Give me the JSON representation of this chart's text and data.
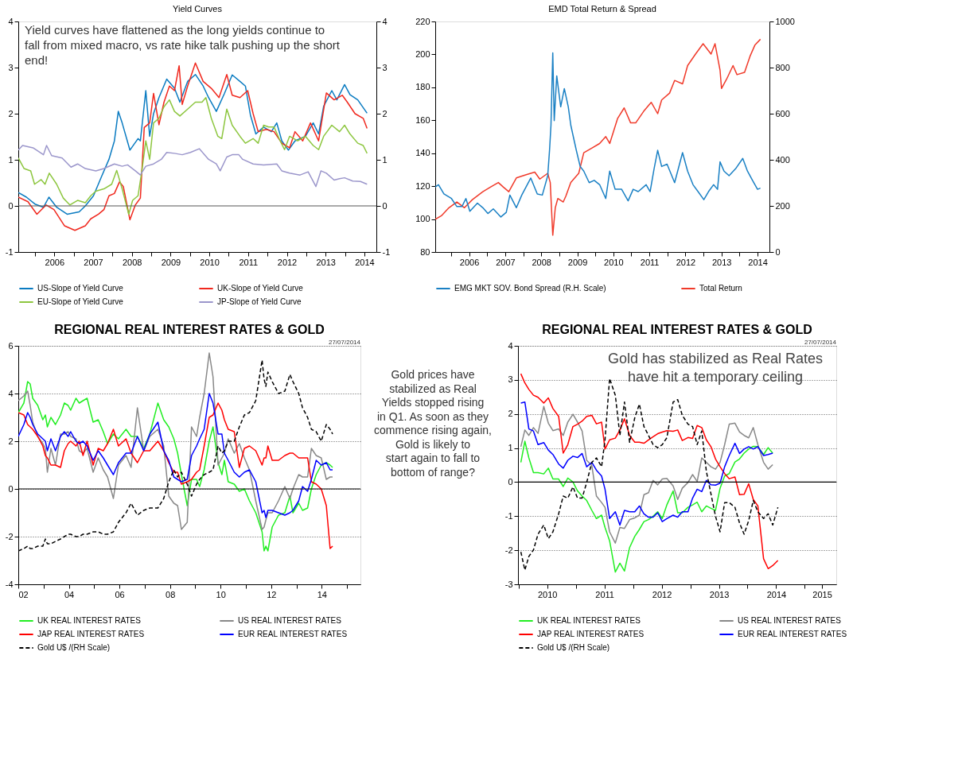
{
  "chart_data": [
    {
      "type": "line",
      "title": "Yield Curves",
      "annotations": [
        "Yield curves have flattened as the long yields continue to fall from mixed macro, vs rate hike talk pushing up the short end!"
      ],
      "xlim": [
        2005.57,
        2014.81
      ],
      "xticks": [
        {
          "value": 2006,
          "label": null
        },
        {
          "value": 2006.5,
          "label": "2006"
        },
        {
          "value": 2007,
          "label": null
        },
        {
          "value": 2007.5,
          "label": "2007"
        },
        {
          "value": 2008,
          "label": null
        },
        {
          "value": 2008.5,
          "label": "2008"
        },
        {
          "value": 2009,
          "label": null
        },
        {
          "value": 2009.5,
          "label": "2009"
        },
        {
          "value": 2010,
          "label": null
        },
        {
          "value": 2010.5,
          "label": "2010"
        },
        {
          "value": 2011,
          "label": null
        },
        {
          "value": 2011.5,
          "label": "2011"
        },
        {
          "value": 2012,
          "label": null
        },
        {
          "value": 2012.5,
          "label": "2012"
        },
        {
          "value": 2013,
          "label": null
        },
        {
          "value": 2013.5,
          "label": "2013"
        },
        {
          "value": 2014,
          "label": null
        },
        {
          "value": 2014.5,
          "label": "2014"
        }
      ],
      "ylim": [
        -1,
        4
      ],
      "yticks": [
        -1,
        0,
        1,
        2,
        3,
        4
      ],
      "y2lim": [
        -1,
        4
      ],
      "y2ticks": [
        -1,
        0,
        1,
        2,
        3,
        4
      ],
      "legend": "bottom",
      "ref_lines": [
        {
          "axis": "y",
          "value": 0,
          "color": "#555555"
        }
      ],
      "series": [
        {
          "name": "US-Slope of Yield Curve",
          "color": "#0a7bc1",
          "x": [
            2005.57,
            2005.78,
            2006.0,
            2006.22,
            2006.36,
            2006.56,
            2006.83,
            2007.14,
            2007.3,
            2007.51,
            2007.71,
            2007.91,
            2008.05,
            2008.15,
            2008.25,
            2008.45,
            2008.66,
            2008.72,
            2008.86,
            2008.96,
            2009.06,
            2009.2,
            2009.4,
            2009.6,
            2009.74,
            2009.94,
            2010.14,
            2010.34,
            2010.48,
            2010.68,
            2010.89,
            2011.09,
            2011.29,
            2011.43,
            2011.56,
            2011.7,
            2011.9,
            2012.1,
            2012.24,
            2012.37,
            2012.54,
            2012.71,
            2012.98,
            2013.18,
            2013.32,
            2013.45,
            2013.66,
            2013.79,
            2013.99,
            2014.13,
            2014.33,
            2014.57
          ],
          "values": [
            0.29,
            0.19,
            0.04,
            -0.03,
            0.19,
            -0.03,
            -0.18,
            -0.13,
            0.0,
            0.22,
            0.62,
            1.01,
            1.41,
            2.05,
            1.8,
            1.21,
            1.46,
            1.41,
            2.5,
            1.51,
            2.0,
            2.35,
            2.75,
            2.55,
            2.25,
            2.7,
            2.85,
            2.6,
            2.35,
            2.05,
            2.44,
            2.84,
            2.7,
            2.6,
            1.97,
            1.56,
            1.71,
            1.61,
            1.8,
            1.41,
            1.21,
            1.41,
            1.51,
            1.8,
            1.56,
            2.16,
            2.5,
            2.3,
            2.63,
            2.41,
            2.3,
            2.01
          ]
        },
        {
          "name": "UK-Slope of Yield Curve",
          "color": "#f0281e",
          "x": [
            2005.57,
            2005.82,
            2006.05,
            2006.29,
            2006.49,
            2006.76,
            2007.03,
            2007.3,
            2007.44,
            2007.64,
            2007.78,
            2007.91,
            2008.05,
            2008.18,
            2008.28,
            2008.45,
            2008.59,
            2008.72,
            2008.82,
            2008.96,
            2009.06,
            2009.2,
            2009.33,
            2009.47,
            2009.6,
            2009.72,
            2009.8,
            2009.94,
            2010.14,
            2010.34,
            2010.55,
            2010.75,
            2010.95,
            2011.09,
            2011.29,
            2011.49,
            2011.63,
            2011.76,
            2011.97,
            2012.17,
            2012.37,
            2012.57,
            2012.71,
            2012.91,
            2013.11,
            2013.32,
            2013.52,
            2013.72,
            2013.93,
            2014.06,
            2014.26,
            2014.47,
            2014.57
          ],
          "values": [
            0.19,
            0.09,
            -0.18,
            0.02,
            -0.08,
            -0.43,
            -0.53,
            -0.43,
            -0.28,
            -0.18,
            -0.08,
            0.22,
            0.27,
            0.52,
            0.42,
            -0.3,
            0.02,
            0.17,
            1.7,
            1.8,
            2.44,
            1.76,
            2.25,
            2.6,
            2.5,
            3.04,
            2.2,
            2.6,
            3.1,
            2.7,
            2.55,
            2.35,
            2.85,
            2.4,
            2.35,
            2.5,
            2.0,
            1.61,
            1.66,
            1.61,
            1.36,
            1.26,
            1.61,
            1.41,
            1.8,
            1.41,
            2.45,
            2.3,
            2.4,
            2.25,
            2.0,
            1.9,
            1.68
          ]
        },
        {
          "name": "EU-Slope of Yield Curve",
          "color": "#8dc63f",
          "x": [
            2005.57,
            2005.72,
            2005.89,
            2005.99,
            2006.16,
            2006.26,
            2006.37,
            2006.56,
            2006.73,
            2006.9,
            2007.1,
            2007.3,
            2007.44,
            2007.57,
            2007.78,
            2007.98,
            2008.11,
            2008.25,
            2008.42,
            2008.52,
            2008.66,
            2008.76,
            2008.86,
            2008.96,
            2009.06,
            2009.2,
            2009.33,
            2009.47,
            2009.6,
            2009.74,
            2009.94,
            2010.14,
            2010.31,
            2010.41,
            2010.55,
            2010.72,
            2010.82,
            2010.95,
            2011.09,
            2011.29,
            2011.43,
            2011.63,
            2011.76,
            2011.9,
            2012.03,
            2012.17,
            2012.3,
            2012.44,
            2012.57,
            2012.78,
            2012.98,
            2013.18,
            2013.32,
            2013.45,
            2013.66,
            2013.86,
            2013.99,
            2014.13,
            2014.33,
            2014.47,
            2014.57
          ],
          "values": [
            1.04,
            0.81,
            0.76,
            0.47,
            0.57,
            0.47,
            0.71,
            0.47,
            0.17,
            0.02,
            0.12,
            0.07,
            0.22,
            0.32,
            0.37,
            0.47,
            0.77,
            0.37,
            -0.18,
            0.12,
            0.22,
            0.77,
            1.41,
            1.01,
            1.8,
            1.9,
            2.15,
            2.3,
            2.05,
            1.95,
            2.1,
            2.25,
            2.25,
            2.35,
            1.9,
            1.51,
            1.46,
            2.1,
            1.75,
            1.51,
            1.36,
            1.46,
            1.36,
            1.75,
            1.71,
            1.71,
            1.46,
            1.22,
            1.51,
            1.41,
            1.51,
            1.31,
            1.22,
            1.51,
            1.75,
            1.61,
            1.75,
            1.56,
            1.36,
            1.31,
            1.14
          ]
        },
        {
          "name": "JP-Slope of Yield Curve",
          "color": "#9b96cb",
          "x": [
            2005.57,
            2005.68,
            2005.95,
            2006.22,
            2006.3,
            2006.43,
            2006.7,
            2006.93,
            2007.1,
            2007.3,
            2007.57,
            2007.78,
            2008.05,
            2008.25,
            2008.39,
            2008.59,
            2008.72,
            2008.86,
            2009.06,
            2009.26,
            2009.4,
            2009.6,
            2009.8,
            2010.01,
            2010.24,
            2010.48,
            2010.68,
            2010.78,
            2010.95,
            2011.09,
            2011.26,
            2011.36,
            2011.63,
            2011.9,
            2012.24,
            2012.37,
            2012.57,
            2012.84,
            2013.05,
            2013.25,
            2013.38,
            2013.52,
            2013.72,
            2013.86,
            2013.99,
            2014.2,
            2014.4,
            2014.57
          ],
          "values": [
            1.21,
            1.31,
            1.26,
            1.11,
            1.31,
            1.09,
            1.04,
            0.84,
            0.91,
            0.81,
            0.76,
            0.81,
            0.91,
            0.86,
            0.89,
            0.76,
            0.67,
            0.86,
            0.91,
            1.01,
            1.16,
            1.14,
            1.11,
            1.16,
            1.24,
            1.01,
            0.91,
            0.76,
            1.06,
            1.11,
            1.11,
            1.01,
            0.91,
            0.89,
            0.91,
            0.76,
            0.71,
            0.67,
            0.74,
            0.42,
            0.76,
            0.71,
            0.56,
            0.59,
            0.61,
            0.54,
            0.53,
            0.47
          ]
        }
      ]
    },
    {
      "type": "line",
      "title": "EMD Total Return & Spread",
      "xlim": [
        2005.56,
        2014.83
      ],
      "xticks": [
        {
          "value": 2006,
          "label": null
        },
        {
          "value": 2006.5,
          "label": "2006"
        },
        {
          "value": 2007,
          "label": null
        },
        {
          "value": 2007.5,
          "label": "2007"
        },
        {
          "value": 2008,
          "label": null
        },
        {
          "value": 2008.5,
          "label": "2008"
        },
        {
          "value": 2009,
          "label": null
        },
        {
          "value": 2009.5,
          "label": "2009"
        },
        {
          "value": 2010,
          "label": null
        },
        {
          "value": 2010.5,
          "label": "2010"
        },
        {
          "value": 2011,
          "label": null
        },
        {
          "value": 2011.5,
          "label": "2011"
        },
        {
          "value": 2012,
          "label": null
        },
        {
          "value": 2012.5,
          "label": "2012"
        },
        {
          "value": 2013,
          "label": null
        },
        {
          "value": 2013.5,
          "label": "2013"
        },
        {
          "value": 2014,
          "label": null
        },
        {
          "value": 2014.5,
          "label": "2014"
        }
      ],
      "ylim": [
        80,
        220
      ],
      "yticks": [
        80,
        100,
        120,
        140,
        160,
        180,
        200,
        220
      ],
      "y2lim": [
        0,
        1000
      ],
      "y2ticks": [
        0,
        200,
        400,
        600,
        800,
        1000
      ],
      "legend": "bottom",
      "series": [
        {
          "name": "EMG MKT SOV. Bond Spread (R.H. Scale)",
          "color": "#1a80c4",
          "axis": "y2",
          "x": [
            2005.56,
            2005.65,
            2005.8,
            2006.01,
            2006.16,
            2006.3,
            2006.41,
            2006.52,
            2006.73,
            2006.88,
            2007.02,
            2007.17,
            2007.38,
            2007.53,
            2007.63,
            2007.81,
            2007.96,
            2008.21,
            2008.39,
            2008.53,
            2008.68,
            2008.73,
            2008.77,
            2008.82,
            2008.86,
            2008.93,
            2009.04,
            2009.14,
            2009.25,
            2009.32,
            2009.47,
            2009.58,
            2009.68,
            2009.83,
            2009.97,
            2010.12,
            2010.29,
            2010.4,
            2010.55,
            2010.73,
            2010.91,
            2011.05,
            2011.19,
            2011.41,
            2011.52,
            2011.63,
            2011.73,
            2011.84,
            2011.99,
            2012.2,
            2012.42,
            2012.56,
            2012.71,
            2012.85,
            2013.01,
            2013.14,
            2013.28,
            2013.39,
            2013.46,
            2013.57,
            2013.71,
            2013.89,
            2014.09,
            2014.22,
            2014.36,
            2014.5,
            2014.58
          ],
          "values": [
            282,
            292,
            252,
            232,
            197,
            197,
            232,
            177,
            212,
            192,
            167,
            187,
            152,
            172,
            247,
            192,
            247,
            321,
            252,
            247,
            331,
            441,
            550,
            864,
            570,
            764,
            630,
            709,
            630,
            550,
            443,
            371,
            351,
            301,
            311,
            292,
            232,
            351,
            272,
            272,
            222,
            272,
            262,
            292,
            262,
            361,
            441,
            371,
            381,
            301,
            431,
            351,
            292,
            262,
            227,
            262,
            292,
            272,
            391,
            351,
            331,
            361,
            406,
            351,
            311,
            272,
            277
          ]
        },
        {
          "name": "Total Return",
          "color": "#f03a2a",
          "x": [
            2005.56,
            2005.73,
            2005.94,
            2006.16,
            2006.37,
            2006.59,
            2006.88,
            2007.09,
            2007.31,
            2007.45,
            2007.6,
            2007.81,
            2008.1,
            2008.32,
            2008.46,
            2008.68,
            2008.75,
            2008.82,
            2008.89,
            2008.96,
            2009.11,
            2009.18,
            2009.32,
            2009.54,
            2009.68,
            2009.9,
            2010.12,
            2010.29,
            2010.4,
            2010.62,
            2010.8,
            2010.98,
            2011.12,
            2011.34,
            2011.55,
            2011.73,
            2011.84,
            2012.06,
            2012.2,
            2012.42,
            2012.56,
            2012.78,
            2012.99,
            2013.21,
            2013.32,
            2013.46,
            2013.5,
            2013.64,
            2013.82,
            2013.93,
            2014.14,
            2014.29,
            2014.43,
            2014.58
          ],
          "values": [
            99.9,
            102.0,
            106.9,
            110.4,
            106.9,
            111.8,
            116.6,
            119.4,
            122.2,
            119.4,
            116.6,
            125.0,
            127.1,
            128.5,
            124.3,
            127.8,
            122.2,
            90.2,
            106.9,
            112.5,
            110.4,
            113.8,
            122.2,
            127.8,
            140.3,
            143.1,
            145.9,
            150.1,
            145.9,
            161.2,
            167.5,
            158.4,
            158.4,
            165.4,
            170.9,
            164.0,
            172.3,
            176.5,
            184.2,
            182.1,
            193.2,
            200.2,
            206.5,
            200.2,
            206.5,
            190.4,
            179.3,
            184.9,
            193.2,
            187.7,
            189.1,
            198.8,
            205.8,
            209.2
          ]
        }
      ]
    },
    {
      "type": "line",
      "title": "REGIONAL REAL INTEREST RATES & GOLD",
      "annotations": [
        "27/07/2014"
      ],
      "xlim": [
        2002,
        2015.53
      ],
      "xticks": [
        {
          "value": 2002,
          "label": "02"
        },
        {
          "value": 2003,
          "label": null
        },
        {
          "value": 2004,
          "label": "04"
        },
        {
          "value": 2005,
          "label": null
        },
        {
          "value": 2006,
          "label": "06"
        },
        {
          "value": 2007,
          "label": null
        },
        {
          "value": 2008,
          "label": "08"
        },
        {
          "value": 2009,
          "label": null
        },
        {
          "value": 2010,
          "label": "10"
        },
        {
          "value": 2011,
          "label": null
        },
        {
          "value": 2012,
          "label": "12"
        },
        {
          "value": 2013,
          "label": null
        },
        {
          "value": 2014,
          "label": "14"
        },
        {
          "value": 2015,
          "label": null
        }
      ],
      "ylim": [
        -4,
        6
      ],
      "yticks": [
        -4,
        -2,
        0,
        2,
        4,
        6
      ],
      "grid": "y",
      "legend": "bottom",
      "ref_lines": [
        {
          "axis": "y",
          "value": 0,
          "color": "#000000"
        }
      ],
      "x": [
        2002.0,
        2002.22,
        2002.37,
        2002.47,
        2002.57,
        2002.77,
        2002.97,
        2003.07,
        2003.15,
        2003.29,
        2003.47,
        2003.67,
        2003.82,
        2003.97,
        2004.07,
        2004.28,
        2004.41,
        2004.56,
        2004.72,
        2004.96,
        2005.16,
        2005.36,
        2005.53,
        2005.76,
        2005.96,
        2006.26,
        2006.46,
        2006.71,
        2006.96,
        2007.2,
        2007.52,
        2007.75,
        2007.95,
        2008.15,
        2008.3,
        2008.45,
        2008.68,
        2008.85,
        2009.05,
        2009.17,
        2009.35,
        2009.55,
        2009.7,
        2009.9,
        2010.05,
        2010.15,
        2010.3,
        2010.54,
        2010.74,
        2010.94,
        2011.14,
        2011.39,
        2011.64,
        2011.72,
        2011.79,
        2011.87,
        2012.04,
        2012.29,
        2012.54,
        2012.74,
        2012.86,
        2013.09,
        2013.24,
        2013.44,
        2013.59,
        2013.78,
        2013.98,
        2014.18,
        2014.33,
        2014.43
      ],
      "series": [
        {
          "name": "UK REAL INTEREST RATES",
          "color": "#22ee22",
          "values": [
            3.2,
            3.6,
            4.5,
            4.4,
            3.8,
            3.5,
            2.9,
            3.1,
            2.6,
            3.0,
            2.7,
            3.1,
            3.6,
            3.5,
            3.3,
            3.8,
            3.6,
            3.7,
            3.8,
            2.8,
            2.9,
            2.4,
            1.9,
            2.3,
            2.1,
            2.5,
            2.2,
            2.2,
            1.7,
            2.3,
            3.6,
            2.9,
            2.6,
            2.1,
            1.5,
            0.6,
            -0.7,
            0.4,
            0.4,
            0.1,
            0.8,
            2.0,
            2.6,
            1.1,
            0.6,
            1.2,
            0.3,
            0.2,
            -0.1,
            0.0,
            -0.5,
            -1.0,
            -1.8,
            -2.6,
            -2.4,
            -2.6,
            -1.6,
            -1.1,
            -1.0,
            -0.3,
            -1.0,
            -0.6,
            -0.9,
            -0.8,
            0.0,
            0.6,
            1.0,
            1.1,
            1.0,
            0.9
          ]
        },
        {
          "name": "US REAL INTEREST RATES",
          "color": "#888888",
          "values": [
            3.7,
            3.9,
            4.1,
            3.5,
            2.8,
            2.2,
            1.9,
            1.7,
            0.7,
            1.7,
            1.0,
            2.3,
            2.3,
            2.4,
            2.2,
            2.1,
            1.6,
            1.5,
            1.7,
            0.7,
            1.3,
            0.8,
            0.5,
            -0.4,
            1.0,
            1.4,
            0.9,
            3.4,
            1.6,
            2.2,
            2.5,
            1.8,
            -0.3,
            -0.6,
            -0.7,
            -1.7,
            -1.4,
            2.6,
            2.2,
            3.0,
            4.0,
            5.7,
            4.7,
            1.0,
            1.3,
            1.5,
            2.1,
            1.5,
            1.9,
            1.3,
            0.8,
            -0.5,
            -1.7,
            -1.6,
            -1.3,
            -1.0,
            -1.0,
            -0.5,
            0.1,
            -0.4,
            0.0,
            0.6,
            0.5,
            0.5,
            1.7,
            1.4,
            1.3,
            0.4,
            0.5,
            0.5
          ]
        },
        {
          "name": "JAP REAL INTEREST RATES",
          "color": "#ff0000",
          "values": [
            3.2,
            3.1,
            2.7,
            2.6,
            2.5,
            2.2,
            1.8,
            1.4,
            1.3,
            1.0,
            1.0,
            0.9,
            1.6,
            1.9,
            2.0,
            1.8,
            2.0,
            1.4,
            2.0,
            1.0,
            1.7,
            1.6,
            1.9,
            2.5,
            1.8,
            2.1,
            1.5,
            1.1,
            1.6,
            1.6,
            2.0,
            1.6,
            1.1,
            0.7,
            0.7,
            0.2,
            0.3,
            0.4,
            0.7,
            0.8,
            1.8,
            3.0,
            3.1,
            3.6,
            3.3,
            2.9,
            2.5,
            2.4,
            0.9,
            1.7,
            1.8,
            1.6,
            1.0,
            1.3,
            1.3,
            1.8,
            1.2,
            1.2,
            1.4,
            1.5,
            1.5,
            1.3,
            1.3,
            1.3,
            0.3,
            0.2,
            0.0,
            -0.7,
            -2.5,
            -2.4
          ]
        },
        {
          "name": "EUR REAL INTEREST RATES",
          "color": "#0000ff",
          "values": [
            2.2,
            2.7,
            3.2,
            3.0,
            2.7,
            2.3,
            2.1,
            2.0,
            1.6,
            2.1,
            1.6,
            2.2,
            2.4,
            2.2,
            2.4,
            2.0,
            1.9,
            2.0,
            1.8,
            1.2,
            1.6,
            1.3,
            1.0,
            0.6,
            1.1,
            1.5,
            1.5,
            2.2,
            1.6,
            2.3,
            2.8,
            1.6,
            1.2,
            0.5,
            0.4,
            0.3,
            0.4,
            1.4,
            1.8,
            2.1,
            2.5,
            4.0,
            3.6,
            2.3,
            2.3,
            1.5,
            1.2,
            0.7,
            0.5,
            0.7,
            0.8,
            0.3,
            -1.0,
            -0.9,
            -1.2,
            -0.9,
            -0.9,
            -1.0,
            -1.1,
            -1.0,
            -0.9,
            -0.5,
            0.1,
            -0.1,
            0.4,
            1.2,
            1.0,
            1.1,
            0.8,
            0.8
          ]
        },
        {
          "name": "Gold  U$ /(RH Scale)",
          "color": "#000000",
          "line_style": "dashed",
          "values": [
            -2.6,
            -2.5,
            -2.4,
            -2.5,
            -2.5,
            -2.4,
            -2.4,
            -2.1,
            -2.3,
            -2.3,
            -2.2,
            -2.1,
            -2.0,
            -1.9,
            -1.9,
            -2.0,
            -2.0,
            -1.9,
            -1.9,
            -1.8,
            -1.8,
            -1.9,
            -1.9,
            -1.8,
            -1.4,
            -1.0,
            -0.6,
            -1.1,
            -0.9,
            -0.8,
            -0.8,
            -0.4,
            0.3,
            0.8,
            0.5,
            0.7,
            0.2,
            -0.3,
            0.2,
            0.4,
            0.6,
            0.7,
            0.8,
            1.8,
            1.5,
            1.6,
            2.0,
            2.0,
            2.6,
            3.1,
            3.2,
            3.7,
            5.4,
            4.6,
            4.3,
            4.9,
            4.5,
            4.0,
            4.1,
            4.8,
            4.5,
            4.0,
            3.4,
            3.0,
            2.5,
            2.4,
            2.0,
            2.7,
            2.5,
            2.3
          ]
        }
      ]
    },
    {
      "type": "other",
      "annotations": [
        "Gold prices have stabilized as Real Yields stopped rising in Q1. As soon as they commence rising again, Gold is likely to start again to fall to bottom of range?"
      ]
    },
    {
      "type": "line",
      "title": "REGIONAL REAL INTEREST RATES & GOLD",
      "annotations": [
        "27/07/2014",
        "Gold has stabilized as Real Rates have hit a temporary ceiling"
      ],
      "xlim": [
        2009.99,
        2015.55
      ],
      "xticks": [
        {
          "value": 2010,
          "label": null
        },
        {
          "value": 2010.5,
          "label": "2010"
        },
        {
          "value": 2011,
          "label": null
        },
        {
          "value": 2011.5,
          "label": "2011"
        },
        {
          "value": 2012,
          "label": null
        },
        {
          "value": 2012.5,
          "label": "2012"
        },
        {
          "value": 2013,
          "label": null
        },
        {
          "value": 2013.5,
          "label": "2013"
        },
        {
          "value": 2014,
          "label": null
        },
        {
          "value": 2014.5,
          "label": "2014"
        },
        {
          "value": 2015,
          "label": null
        },
        {
          "value": 2015.3,
          "label": "2015"
        }
      ],
      "ylim": [
        -3,
        4
      ],
      "yticks": [
        -3,
        -2,
        -1,
        0,
        1,
        2,
        3,
        4
      ],
      "grid": "y",
      "legend": "bottom",
      "ref_lines": [
        {
          "axis": "y",
          "value": 0,
          "color": "#000000"
        }
      ],
      "x": [
        2010.04,
        2010.11,
        2010.18,
        2010.26,
        2010.34,
        2010.44,
        2010.52,
        2010.6,
        2010.7,
        2010.78,
        2010.86,
        2010.95,
        2011.03,
        2011.11,
        2011.19,
        2011.28,
        2011.36,
        2011.45,
        2011.51,
        2011.59,
        2011.69,
        2011.77,
        2011.85,
        2011.94,
        2012.03,
        2012.11,
        2012.19,
        2012.27,
        2012.35,
        2012.43,
        2012.51,
        2012.59,
        2012.7,
        2012.78,
        2012.86,
        2012.96,
        2013.04,
        2013.12,
        2013.2,
        2013.28,
        2013.36,
        2013.44,
        2013.52,
        2013.6,
        2013.68,
        2013.78,
        2013.86,
        2013.94,
        2014.02,
        2014.1,
        2014.18,
        2014.28,
        2014.36,
        2014.44,
        2014.53
      ],
      "series": [
        {
          "name": "UK REAL INTEREST RATES",
          "color": "#22ee22",
          "values": [
            0.58,
            1.2,
            0.71,
            0.28,
            0.28,
            0.24,
            0.41,
            0.09,
            0.09,
            -0.13,
            0.12,
            0.0,
            -0.26,
            -0.41,
            -0.54,
            -0.83,
            -1.07,
            -0.97,
            -1.33,
            -1.72,
            -2.64,
            -2.38,
            -2.61,
            -1.92,
            -1.59,
            -1.39,
            -1.16,
            -1.1,
            -1.0,
            -0.87,
            -1.07,
            -0.67,
            -0.26,
            -0.9,
            -0.9,
            -0.74,
            -0.67,
            -0.59,
            -0.87,
            -0.7,
            -0.77,
            -0.83,
            -0.18,
            0.18,
            0.25,
            0.59,
            0.68,
            0.85,
            0.97,
            1.05,
            1.04,
            0.81,
            1.01,
            0.85,
            null
          ]
        },
        {
          "name": "US REAL INTEREST RATES",
          "color": "#888888",
          "values": [
            1.04,
            1.53,
            1.37,
            1.6,
            1.43,
            2.22,
            1.73,
            1.51,
            1.56,
            1.37,
            1.76,
            1.99,
            1.76,
            1.5,
            0.64,
            0.48,
            -0.41,
            -0.6,
            -0.74,
            -1.46,
            -1.79,
            -1.33,
            -1.36,
            -1.1,
            -1.05,
            -0.97,
            -0.37,
            -0.31,
            0.05,
            -0.08,
            0.09,
            0.11,
            -0.11,
            -0.51,
            -0.18,
            -0.01,
            0.22,
            0.02,
            0.71,
            0.58,
            0.45,
            0.38,
            0.58,
            1.1,
            1.7,
            1.73,
            1.47,
            1.37,
            1.3,
            1.6,
            1.1,
            0.58,
            0.38,
            0.51,
            null
          ]
        },
        {
          "name": "JAP REAL INTEREST RATES",
          "color": "#ff0000",
          "values": [
            3.18,
            2.91,
            2.72,
            2.55,
            2.49,
            2.32,
            2.47,
            2.16,
            1.93,
            0.85,
            1.1,
            1.63,
            1.7,
            1.79,
            1.93,
            1.96,
            1.71,
            1.76,
            0.97,
            1.24,
            1.29,
            1.53,
            1.86,
            1.37,
            1.17,
            1.17,
            1.14,
            1.24,
            1.33,
            1.42,
            1.47,
            1.51,
            1.49,
            1.53,
            1.22,
            1.31,
            1.28,
            1.66,
            1.6,
            1.24,
            1.04,
            0.68,
            0.45,
            0.25,
            0.1,
            0.15,
            -0.37,
            -0.36,
            -0.05,
            -0.51,
            -0.7,
            -2.25,
            -2.54,
            -2.45,
            -2.3
          ]
        },
        {
          "name": "EUR REAL INTEREST RATES",
          "color": "#0000ff",
          "values": [
            2.32,
            2.35,
            1.56,
            1.5,
            1.1,
            1.16,
            0.94,
            0.81,
            0.53,
            0.41,
            0.64,
            0.76,
            0.72,
            0.84,
            0.45,
            0.58,
            0.35,
            0.18,
            -0.21,
            -1.07,
            -0.87,
            -1.26,
            -0.83,
            -0.87,
            -0.87,
            -0.7,
            -0.93,
            -1.03,
            -1.03,
            -0.9,
            -1.16,
            -1.07,
            -0.97,
            -1.03,
            -0.87,
            -0.87,
            -0.47,
            -0.21,
            -0.28,
            0.05,
            -0.08,
            -0.09,
            -0.03,
            0.45,
            0.78,
            1.14,
            0.84,
            0.97,
            1.04,
            0.97,
            1.04,
            0.78,
            0.81,
            0.85,
            null
          ]
        },
        {
          "name": "Gold  U$ /(RH Scale)",
          "color": "#000000",
          "line_style": "dashed",
          "values": [
            -2.05,
            -2.58,
            -2.18,
            -1.99,
            -1.53,
            -1.26,
            -1.66,
            -1.46,
            -0.93,
            -0.41,
            -0.47,
            -0.14,
            -0.47,
            -0.47,
            -0.01,
            0.58,
            0.71,
            0.45,
            1.24,
            3.04,
            2.55,
            1.37,
            2.35,
            1.17,
            1.89,
            2.29,
            1.63,
            1.37,
            1.1,
            1.01,
            1.1,
            1.3,
            2.35,
            2.42,
            1.96,
            1.7,
            1.63,
            1.1,
            1.5,
            0.32,
            -0.34,
            -1.0,
            -1.46,
            -0.6,
            -0.6,
            -0.74,
            -1.2,
            -1.53,
            -1.13,
            -0.54,
            -0.87,
            -1.07,
            -0.93,
            -1.26,
            -0.74
          ]
        }
      ]
    }
  ]
}
